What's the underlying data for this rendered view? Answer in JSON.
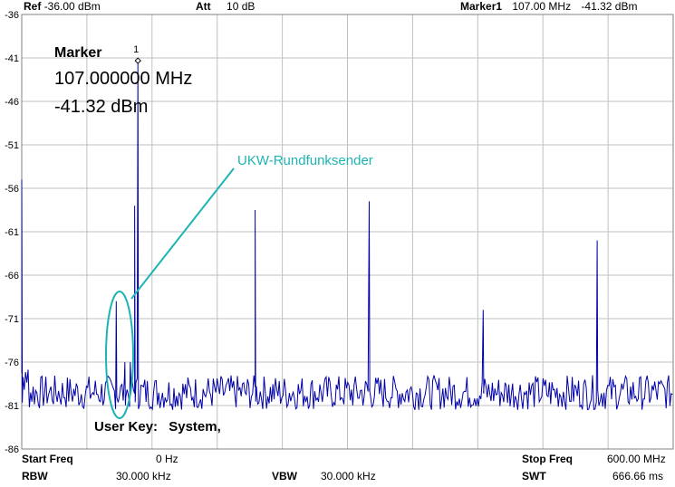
{
  "header": {
    "ref_label": "Ref",
    "ref_value": "-36.00 dBm",
    "att_label": "Att",
    "att_value": "10 dB",
    "marker_label": "Marker1",
    "marker_freq": "107.00 MHz",
    "marker_level": "-41.32 dBm"
  },
  "marker_box": {
    "title": "Marker",
    "frequency": "107.000000 MHz",
    "level": "-41.32 dBm",
    "peak_label": "1"
  },
  "annotation": {
    "label": "UKW-Rundfunksender",
    "color": "#1fb4b4"
  },
  "user_key": {
    "label": "User Key:",
    "value": "System,"
  },
  "footer": {
    "start_label": "Start Freq",
    "start_value": "0 Hz",
    "stop_label": "Stop Freq",
    "stop_value": "600.00 MHz",
    "rbw_label": "RBW",
    "rbw_value": "30.000 kHz",
    "vbw_label": "VBW",
    "vbw_value": "30.000 kHz",
    "swt_label": "SWT",
    "swt_value": "666.66 ms"
  },
  "colors": {
    "trace": "#0000a8",
    "grid": "#c0c0c0",
    "annotation": "#1fb4b4"
  },
  "chart_data": {
    "type": "line",
    "x_unit": "MHz",
    "y_unit": "dBm",
    "xlim": [
      0,
      600
    ],
    "ylim": [
      -86,
      -36
    ],
    "y_ticks": [
      "-36",
      "-41",
      "-46",
      "-51",
      "-56",
      "-61",
      "-66",
      "-71",
      "-76",
      "-81",
      "-86"
    ],
    "grid": true,
    "noise_floor": -79.5,
    "peaks": [
      {
        "x": 0,
        "y": -55
      },
      {
        "x": 87,
        "y": -69
      },
      {
        "x": 95,
        "y": -76
      },
      {
        "x": 100,
        "y": -76
      },
      {
        "x": 104,
        "y": -58
      },
      {
        "x": 107,
        "y": -41.32
      },
      {
        "x": 215,
        "y": -58.5
      },
      {
        "x": 320,
        "y": -57.5
      },
      {
        "x": 425,
        "y": -70
      },
      {
        "x": 530,
        "y": -62
      }
    ]
  }
}
